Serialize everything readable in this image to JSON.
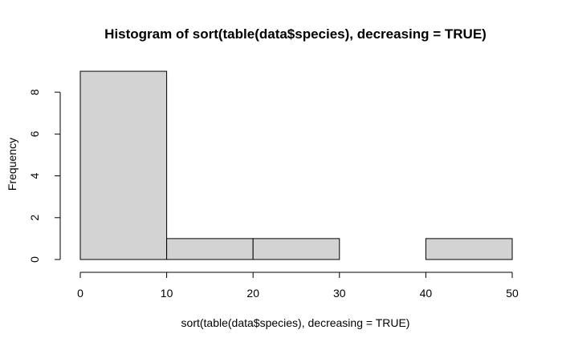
{
  "chart_data": {
    "type": "bar",
    "title": "Histogram of sort(table(data$species), decreasing = TRUE)",
    "xlabel": "sort(table(data$species), decreasing = TRUE)",
    "ylabel": "Frequency",
    "bins": [
      {
        "start": 0,
        "end": 10,
        "count": 9
      },
      {
        "start": 10,
        "end": 20,
        "count": 1
      },
      {
        "start": 20,
        "end": 30,
        "count": 1
      },
      {
        "start": 30,
        "end": 40,
        "count": 0
      },
      {
        "start": 40,
        "end": 50,
        "count": 1
      }
    ],
    "xlim": [
      0,
      50
    ],
    "ylim": [
      0,
      9
    ],
    "x_ticks": [
      0,
      10,
      20,
      30,
      40,
      50
    ],
    "y_ticks": [
      0,
      2,
      4,
      6,
      8
    ],
    "grid": false,
    "legend": "none",
    "bar_fill": "#d3d3d3",
    "bar_stroke": "#000000"
  }
}
